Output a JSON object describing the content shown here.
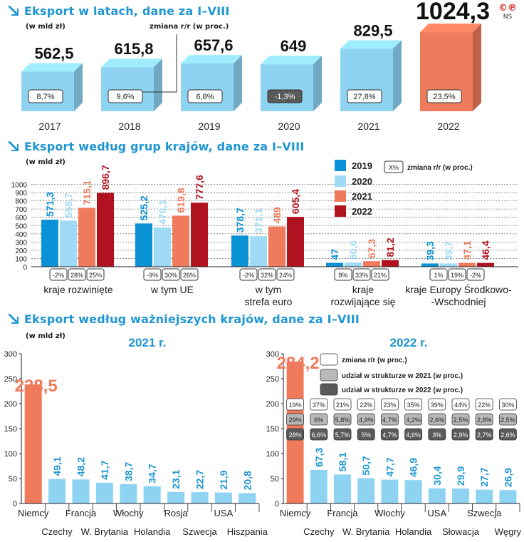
{
  "logo": {
    "marks": "©℗",
    "initials": "NS"
  },
  "section1": {
    "title": "Eksport w latach, dane za I–VIII",
    "unit": "(w mld zł)",
    "change_label": "zmiana r/r (w proc.)"
  },
  "section2": {
    "title": "Eksport według grup krajów, dane za I–VIII",
    "unit": "(w mld zł)",
    "change_legend_box": "X%",
    "change_label": "zmiana r/r (w proc.)"
  },
  "section3": {
    "title": "Eksport według ważniejszych krajów, dane za I–VIII",
    "unit": "(w mld zł)",
    "legend": [
      "zmiana r/r (w proc.)",
      "udział w strukturze w 2021 (w proc.)",
      "udział w strukturze w 2022 (w proc.)"
    ]
  },
  "colors": {
    "accent": "#1e96d2",
    "highlight": "#ef7a5c",
    "box_light": "#8fd3f3",
    "s2019": "#0a92d6",
    "s2020": "#9fdaf6",
    "s2021": "#ef7a5c",
    "s2022": "#b0121f",
    "gray_mid": "#b8b8b8",
    "gray_dark": "#5a5a5a"
  },
  "chart_data": [
    {
      "type": "bar",
      "categories": [
        "2017",
        "2018",
        "2019",
        "2020",
        "2021",
        "2022"
      ],
      "values": [
        562.5,
        615.8,
        657.6,
        649,
        829.5,
        1024.3
      ],
      "value_labels": [
        "562,5",
        "615,8",
        "657,6",
        "649",
        "829,5",
        "1024,3"
      ],
      "change_labels": [
        "8,7%",
        "9,6%",
        "6,8%",
        "-1,3%",
        "27,8%",
        "23,5%"
      ],
      "title": "Eksport w latach, dane za I–VIII",
      "ylabel": "(w mld zł)"
    },
    {
      "type": "bar",
      "categories": [
        "kraje rozwinięte",
        "w tym UE",
        "w tym strefa euro",
        "kraje rozwijające się",
        "kraje Europy Środkowo--Wschodniej"
      ],
      "category_lines": [
        [
          "kraje rozwinięte"
        ],
        [
          "w tym UE"
        ],
        [
          "w tym",
          "strefa euro"
        ],
        [
          "kraje",
          "rozwijające się"
        ],
        [
          "kraje Europy Środkowo-",
          "-Wschodniej"
        ]
      ],
      "series": [
        {
          "name": "2019",
          "values": [
            571.3,
            525.2,
            378.7,
            47,
            39.3
          ],
          "labels": [
            "571,3",
            "525,2",
            "378,7",
            "47",
            "39,3"
          ]
        },
        {
          "name": "2020",
          "values": [
            558.7,
            476.1,
            371.1,
            50.6,
            39.7
          ],
          "labels": [
            "558,7",
            "476,1",
            "371,1",
            "50,6",
            "39,7"
          ]
        },
        {
          "name": "2021",
          "values": [
            715.1,
            619.8,
            489,
            67.3,
            47.1
          ],
          "labels": [
            "715,1",
            "619,8",
            "489",
            "67,3",
            "47,1"
          ]
        },
        {
          "name": "2022",
          "values": [
            896.7,
            777.6,
            605.4,
            81.2,
            46.4
          ],
          "labels": [
            "896,7",
            "777,6",
            "605,4",
            "81,2",
            "46,4"
          ]
        }
      ],
      "changes": [
        [
          "-2%",
          "28%",
          "25%"
        ],
        [
          "-9%",
          "30%",
          "26%"
        ],
        [
          "-2%",
          "32%",
          "24%"
        ],
        [
          "8%",
          "33%",
          "21%"
        ],
        [
          "1%",
          "19%",
          "-2%"
        ]
      ],
      "yticks": [
        "0",
        "100",
        "200",
        "300",
        "400",
        "500",
        "600",
        "700",
        "800",
        "900",
        "1000"
      ],
      "ylim": [
        0,
        1000
      ],
      "title": "Eksport według grup krajów, dane za I–VIII",
      "ylabel": "(w mld zł)"
    },
    {
      "type": "bar",
      "title": "2021 r.",
      "categories": [
        "Niemcy",
        "Czechy",
        "Francja",
        "W. Brytania",
        "Włochy",
        "Holandia",
        "Rosja",
        "Szwecja",
        "USA",
        "Hiszpania"
      ],
      "values": [
        238.5,
        49.1,
        48.2,
        41.7,
        38.7,
        34.7,
        23.1,
        22.7,
        21.9,
        20.8
      ],
      "value_labels": [
        "238,5",
        "49,1",
        "48,2",
        "41,7",
        "38,7",
        "34,7",
        "23,1",
        "22,7",
        "21,9",
        "20,8"
      ],
      "yticks": [
        "0",
        "50",
        "100",
        "150",
        "200",
        "250",
        "300"
      ],
      "ylim": [
        0,
        300
      ]
    },
    {
      "type": "bar",
      "title": "2022 r.",
      "categories": [
        "Niemcy",
        "Czechy",
        "Francja",
        "W. Brytania",
        "Włochy",
        "Holandia",
        "USA",
        "Słowacja",
        "Szwecja",
        "Węgry"
      ],
      "values": [
        284.2,
        67.3,
        58.1,
        50.7,
        47.7,
        46.9,
        30.4,
        29.9,
        27.7,
        26.9
      ],
      "value_labels": [
        "284,2",
        "67,3",
        "58,1",
        "50,7",
        "47,7",
        "46,9",
        "30,4",
        "29,9",
        "27,7",
        "26,9"
      ],
      "change_yoy": [
        "19%",
        "37%",
        "21%",
        "22%",
        "23%",
        "35%",
        "39%",
        "44%",
        "22%",
        "30%"
      ],
      "share_2021": [
        "29%",
        "6%",
        "5,8%",
        "4,9%",
        "4,7%",
        "4,2%",
        "2,6%",
        "2,5%",
        "2,8%",
        "2,5%"
      ],
      "share_2022": [
        "28%",
        "6,6%",
        "5,7%",
        "5%",
        "4,7%",
        "4,6%",
        "3%",
        "2,9%",
        "2,7%",
        "2,6%"
      ],
      "yticks": [
        "0",
        "50",
        "100",
        "150",
        "200",
        "250",
        "300"
      ],
      "ylim": [
        0,
        300
      ]
    }
  ]
}
